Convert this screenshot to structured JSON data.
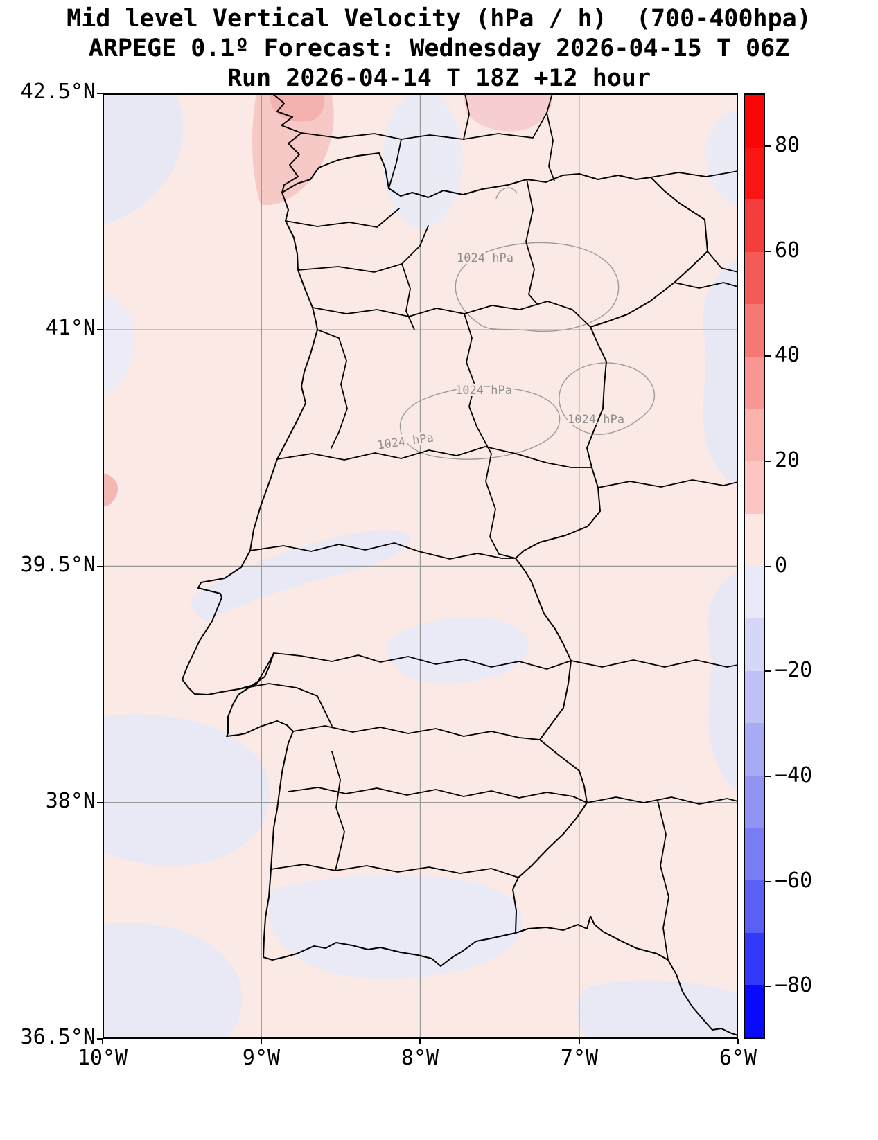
{
  "title": {
    "line1": "Mid level Vertical Velocity (hPa / h)  (700-400hpa)",
    "line2": "ARPEGE 0.1º Forecast: Wednesday 2026-04-15 T 06Z",
    "line3": "Run 2026-04-14 T 18Z +12 hour"
  },
  "axes": {
    "lat_ticks": [
      "42.5°N",
      "41°N",
      "39.5°N",
      "38°N",
      "36.5°N"
    ],
    "lon_ticks": [
      "10°W",
      "9°W",
      "8°W",
      "7°W",
      "6°W"
    ]
  },
  "contour_labels": [
    "1024 hPa",
    "1024 hPa",
    "1024 hPa",
    "1024 hPa"
  ],
  "colorbar": {
    "range": [
      90,
      -90
    ],
    "tick_values": [
      80,
      60,
      40,
      20,
      0,
      -20,
      -40,
      -60,
      -80
    ],
    "tick_labels": [
      "80",
      "60",
      "40",
      "20",
      "0",
      "−20",
      "−40",
      "−60",
      "−80"
    ],
    "segments": [
      "#f90606",
      "#fa1515",
      "#f43e3c",
      "#f45a57",
      "#f57874",
      "#f79692",
      "#f9b2ae",
      "#fbc6c2",
      "#fce7e3",
      "#e9e9f7",
      "#d6d7f6",
      "#bfc1f4",
      "#a8abf3",
      "#9194f2",
      "#787df3",
      "#5a60f6",
      "#3339f9",
      "#0909fb"
    ]
  },
  "colors": {
    "map_base": "#fbe9e5",
    "negative_patch": "#e9e9f5",
    "positive_patch": "#f6c9c6",
    "gridline": "#999999",
    "boundary": "#000000",
    "isobar": "#9a9a9a"
  },
  "chart_data": {
    "type": "heatmap",
    "title": "Mid level Vertical Velocity (hPa / h)  (700-400hpa)",
    "subtitle": "ARPEGE 0.1º Forecast: Wednesday 2026-04-15 T 06Z",
    "run_line": "Run 2026-04-14 T 18Z +12 hour",
    "units": "hPa / h",
    "x": {
      "label": "longitude",
      "ticks": [
        "10°W",
        "9°W",
        "8°W",
        "7°W",
        "6°W"
      ],
      "range": [
        -10,
        -6
      ]
    },
    "y": {
      "label": "latitude",
      "ticks": [
        "36.5°N",
        "38°N",
        "39.5°N",
        "41°N",
        "42.5°N"
      ],
      "range": [
        36.5,
        42.5
      ]
    },
    "grid": true,
    "legend_position": "right-colorbar",
    "colorbar": {
      "orientation": "vertical",
      "range": [
        90,
        -90
      ],
      "tick_values": [
        80,
        60,
        40,
        20,
        0,
        -20,
        -40,
        -60,
        -80
      ],
      "band_width": 10
    },
    "overlays": [
      "national and district administrative boundaries (Portugal and Spain)",
      "1024 hPa isobar contours in gray"
    ],
    "field_summary": "Domain dominated by weak values between about -10 and +10 hPa/h: pale pink (0 to +10) over most of the map with scattered pale lavender (0 to -10) bands in the west, center, south and along the eastern edge; a stronger positive patch up to about +20 hPa/h near the northwest coast at the top edge and smaller pink maxima along the top of the domain."
  }
}
